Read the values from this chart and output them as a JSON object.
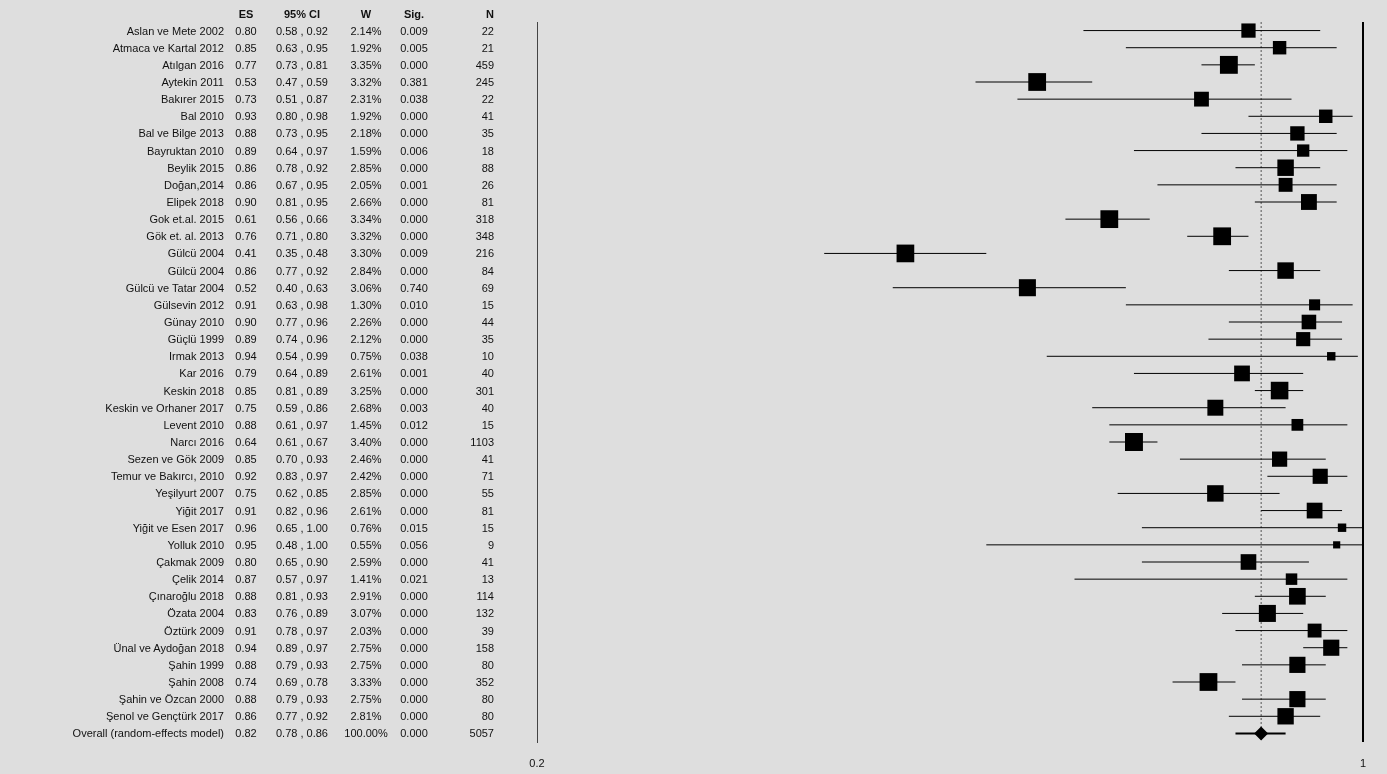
{
  "chart_data": [
    {
      "type": "heatmap",
      "categories": [
        "ES",
        "95% CI",
        "W",
        "Sig.",
        "N"
      ],
      "y_categories": [
        "Aslan ve Mete 2002",
        "Atmaca ve Kartal 2012",
        "Atılgan 2016",
        "Aytekin 2011",
        "Bakırer 2015",
        "Bal 2010",
        "Bal ve Bilge 2013",
        "Bayruktan 2010",
        "Beylik 2015",
        "Doğan,2014",
        "Elipek 2018",
        "Gok et.al. 2015",
        "Gök et. al. 2013",
        "Gülcü 2004",
        "Gülcü 2004",
        "Gülcü ve Tatar 2004",
        "Gülsevin 2012",
        "Günay 2010",
        "Güçlü 1999",
        "Irmak 2013",
        "Kar 2016",
        "Keskin 2018",
        "Keskin ve Orhaner 2017",
        "Levent 2010",
        "Narcı 2016",
        "Sezen ve Gök 2009",
        "Temur ve Bakırcı, 2010",
        "Yeşilyurt 2007",
        "Yiğit 2017",
        "Yiğit ve Esen 2017",
        "Yolluk 2010",
        "Çakmak 2009",
        "Çelik 2014",
        "Çınaroğlu 2018",
        "Özata 2004",
        "Öztürk 2009",
        "Ünal ve Aydoğan 2018",
        "Şahin 1999",
        "Şahin 2008",
        "Şahin ve Özcan 2000",
        "Şenol ve Gençtürk 2017",
        "Overall (random-effects model)"
      ],
      "cells": [
        [
          null,
          null,
          null,
          null,
          null
        ],
        [
          null,
          null,
          null,
          null,
          null
        ],
        [
          null,
          null,
          null,
          null,
          null
        ],
        [
          null,
          null,
          null,
          null,
          null
        ],
        [
          null,
          null,
          null,
          null,
          null
        ],
        [
          null,
          null,
          null,
          null,
          null
        ],
        [
          null,
          null,
          null,
          null,
          null
        ],
        [
          null,
          null,
          null,
          null,
          null
        ],
        [
          null,
          null,
          null,
          null,
          null
        ],
        [
          null,
          null,
          null,
          null,
          null
        ],
        [
          null,
          null,
          null,
          null,
          null
        ],
        [
          null,
          null,
          null,
          null,
          null
        ],
        [
          null,
          null,
          null,
          null,
          null
        ],
        [
          null,
          null,
          null,
          null,
          null
        ],
        [
          null,
          null,
          null,
          null,
          null
        ],
        [
          null,
          null,
          null,
          null,
          null
        ],
        [
          null,
          null,
          null,
          null,
          null
        ],
        [
          null,
          null,
          null,
          null,
          null
        ],
        [
          null,
          null,
          null,
          null,
          null
        ],
        [
          null,
          null,
          null,
          null,
          null
        ],
        [
          null,
          null,
          null,
          null,
          null
        ],
        [
          null,
          null,
          null,
          null,
          null
        ],
        [
          null,
          null,
          null,
          null,
          null
        ],
        [
          null,
          null,
          null,
          null,
          null
        ],
        [
          null,
          null,
          null,
          null,
          null
        ],
        [
          null,
          null,
          null,
          null,
          null
        ],
        [
          null,
          null,
          null,
          null,
          null
        ],
        [
          null,
          null,
          null,
          null,
          null
        ],
        [
          null,
          null,
          null,
          null,
          null
        ],
        [
          null,
          null,
          null,
          null,
          null
        ],
        [
          null,
          null,
          null,
          null,
          null
        ],
        [
          null,
          null,
          null,
          null,
          null
        ],
        [
          null,
          null,
          null,
          null,
          null
        ],
        [
          null,
          null,
          null,
          null,
          null
        ],
        [
          null,
          null,
          null,
          null,
          null
        ],
        [
          null,
          null,
          null,
          null,
          null
        ],
        [
          null,
          null,
          null,
          null,
          null
        ],
        [
          null,
          null,
          null,
          null,
          null
        ],
        [
          null,
          null,
          null,
          null,
          null
        ],
        [
          null,
          null,
          null,
          null,
          null
        ],
        [
          null,
          null,
          null,
          null,
          null
        ],
        [
          null,
          null,
          null,
          null,
          null
        ]
      ],
      "cell_labels": [
        [
          "0.80",
          "0.58 , 0.92",
          "2.14%",
          "0.009",
          "22"
        ],
        [
          "0.85",
          "0.63 , 0.95",
          "1.92%",
          "0.005",
          "21"
        ],
        [
          "0.77",
          "0.73 , 0.81",
          "3.35%",
          "0.000",
          "459"
        ],
        [
          "0.53",
          "0.47 , 0.59",
          "3.32%",
          "0.381",
          "245"
        ],
        [
          "0.73",
          "0.51 , 0.87",
          "2.31%",
          "0.038",
          "22"
        ],
        [
          "0.93",
          "0.80 , 0.98",
          "1.92%",
          "0.000",
          "41"
        ],
        [
          "0.88",
          "0.73 , 0.95",
          "2.18%",
          "0.000",
          "35"
        ],
        [
          "0.89",
          "0.64 , 0.97",
          "1.59%",
          "0.006",
          "18"
        ],
        [
          "0.86",
          "0.78 , 0.92",
          "2.85%",
          "0.000",
          "88"
        ],
        [
          "0.86",
          "0.67 , 0.95",
          "2.05%",
          "0.001",
          "26"
        ],
        [
          "0.90",
          "0.81 , 0.95",
          "2.66%",
          "0.000",
          "81"
        ],
        [
          "0.61",
          "0.56 , 0.66",
          "3.34%",
          "0.000",
          "318"
        ],
        [
          "0.76",
          "0.71 , 0.80",
          "3.32%",
          "0.000",
          "348"
        ],
        [
          "0.41",
          "0.35 , 0.48",
          "3.30%",
          "0.009",
          "216"
        ],
        [
          "0.86",
          "0.77 , 0.92",
          "2.84%",
          "0.000",
          "84"
        ],
        [
          "0.52",
          "0.40 , 0.63",
          "3.06%",
          "0.740",
          "69"
        ],
        [
          "0.91",
          "0.63 , 0.98",
          "1.30%",
          "0.010",
          "15"
        ],
        [
          "0.90",
          "0.77 , 0.96",
          "2.26%",
          "0.000",
          "44"
        ],
        [
          "0.89",
          "0.74 , 0.96",
          "2.12%",
          "0.000",
          "35"
        ],
        [
          "0.94",
          "0.54 , 0.99",
          "0.75%",
          "0.038",
          "10"
        ],
        [
          "0.79",
          "0.64 , 0.89",
          "2.61%",
          "0.001",
          "40"
        ],
        [
          "0.85",
          "0.81 , 0.89",
          "3.25%",
          "0.000",
          "301"
        ],
        [
          "0.75",
          "0.59 , 0.86",
          "2.68%",
          "0.003",
          "40"
        ],
        [
          "0.88",
          "0.61 , 0.97",
          "1.45%",
          "0.012",
          "15"
        ],
        [
          "0.64",
          "0.61 , 0.67",
          "3.40%",
          "0.000",
          "1103"
        ],
        [
          "0.85",
          "0.70 , 0.93",
          "2.46%",
          "0.000",
          "41"
        ],
        [
          "0.92",
          "0.83 , 0.97",
          "2.42%",
          "0.000",
          "71"
        ],
        [
          "0.75",
          "0.62 , 0.85",
          "2.85%",
          "0.000",
          "55"
        ],
        [
          "0.91",
          "0.82 , 0.96",
          "2.61%",
          "0.000",
          "81"
        ],
        [
          "0.96",
          "0.65 , 1.00",
          "0.76%",
          "0.015",
          "15"
        ],
        [
          "0.95",
          "0.48 , 1.00",
          "0.55%",
          "0.056",
          "9"
        ],
        [
          "0.80",
          "0.65 , 0.90",
          "2.59%",
          "0.000",
          "41"
        ],
        [
          "0.87",
          "0.57 , 0.97",
          "1.41%",
          "0.021",
          "13"
        ],
        [
          "0.88",
          "0.81 , 0.93",
          "2.91%",
          "0.000",
          "114"
        ],
        [
          "0.83",
          "0.76 , 0.89",
          "3.07%",
          "0.000",
          "132"
        ],
        [
          "0.91",
          "0.78 , 0.97",
          "2.03%",
          "0.000",
          "39"
        ],
        [
          "0.94",
          "0.89 , 0.97",
          "2.75%",
          "0.000",
          "158"
        ],
        [
          "0.88",
          "0.79 , 0.93",
          "2.75%",
          "0.000",
          "80"
        ],
        [
          "0.74",
          "0.69 , 0.78",
          "3.33%",
          "0.000",
          "352"
        ],
        [
          "0.88",
          "0.79 , 0.93",
          "2.75%",
          "0.000",
          "80"
        ],
        [
          "0.86",
          "0.77 , 0.92",
          "2.81%",
          "0.000",
          "80"
        ],
        [
          "0.82",
          "0.78 , 0.86",
          "100.00%",
          "0.000",
          "5057"
        ]
      ]
    },
    {
      "type": "scatter",
      "orientation": "horizontal",
      "log": "x",
      "xlim": [
        0.2,
        1
      ],
      "xticks": [
        0.2,
        1
      ],
      "tick_labels": "x",
      "legend": false,
      "categories": [
        null,
        null,
        null,
        null,
        null,
        null,
        null,
        null,
        null,
        null,
        null,
        null,
        null,
        null,
        null,
        null,
        null,
        null,
        null,
        null,
        null,
        null,
        null,
        null,
        null,
        null,
        null,
        null,
        null,
        null,
        null,
        null,
        null,
        null,
        null,
        null,
        null,
        null,
        null,
        null,
        null,
        null
      ],
      "series": [
        {
          "type": "bubble",
          "marker": "square",
          "color": "#000000",
          "values": [
            0.8,
            0.85,
            0.77,
            0.53,
            0.73,
            0.93,
            0.88,
            0.89,
            0.86,
            0.86,
            0.9,
            0.61,
            0.76,
            0.41,
            0.86,
            0.52,
            0.91,
            0.9,
            0.89,
            0.94,
            0.79,
            0.85,
            0.75,
            0.88,
            0.64,
            0.85,
            0.92,
            0.75,
            0.91,
            0.96,
            0.95,
            0.8,
            0.87,
            0.88,
            0.83,
            0.91,
            0.94,
            0.88,
            0.74,
            0.88,
            0.86,
            null
          ],
          "errors": [
            [
              0.58,
              0.92
            ],
            [
              0.63,
              0.95
            ],
            [
              0.73,
              0.81
            ],
            [
              0.47,
              0.59
            ],
            [
              0.51,
              0.87
            ],
            [
              0.8,
              0.98
            ],
            [
              0.73,
              0.95
            ],
            [
              0.64,
              0.97
            ],
            [
              0.78,
              0.92
            ],
            [
              0.67,
              0.95
            ],
            [
              0.81,
              0.95
            ],
            [
              0.56,
              0.66
            ],
            [
              0.71,
              0.8
            ],
            [
              0.35,
              0.48
            ],
            [
              0.77,
              0.92
            ],
            [
              0.4,
              0.63
            ],
            [
              0.63,
              0.98
            ],
            [
              0.77,
              0.96
            ],
            [
              0.74,
              0.96
            ],
            [
              0.54,
              0.99
            ],
            [
              0.64,
              0.89
            ],
            [
              0.81,
              0.89
            ],
            [
              0.59,
              0.86
            ],
            [
              0.61,
              0.97
            ],
            [
              0.61,
              0.67
            ],
            [
              0.7,
              0.93
            ],
            [
              0.83,
              0.97
            ],
            [
              0.62,
              0.85
            ],
            [
              0.82,
              0.96
            ],
            [
              0.65,
              1.0
            ],
            [
              0.48,
              1.0
            ],
            [
              0.65,
              0.9
            ],
            [
              0.57,
              0.97
            ],
            [
              0.81,
              0.93
            ],
            [
              0.76,
              0.89
            ],
            [
              0.78,
              0.97
            ],
            [
              0.89,
              0.97
            ],
            [
              0.79,
              0.93
            ],
            [
              0.69,
              0.78
            ],
            [
              0.79,
              0.93
            ],
            [
              0.77,
              0.92
            ],
            null
          ],
          "sizes": [
            0.63,
            0.56,
            0.99,
            0.98,
            0.68,
            0.56,
            0.64,
            0.47,
            0.84,
            0.6,
            0.78,
            0.98,
            0.98,
            0.97,
            0.84,
            0.9,
            0.38,
            0.66,
            0.62,
            0.22,
            0.77,
            0.96,
            0.79,
            0.43,
            1,
            0.72,
            0.71,
            0.84,
            0.77,
            0.22,
            0.16,
            0.76,
            0.41,
            0.86,
            0.9,
            0.6,
            0.81,
            0.81,
            0.98,
            0.81,
            0.83,
            null
          ]
        },
        {
          "type": "scatter",
          "marker": "diamond",
          "color": "#000000",
          "values": [
            null,
            null,
            null,
            null,
            null,
            null,
            null,
            null,
            null,
            null,
            null,
            null,
            null,
            null,
            null,
            null,
            null,
            null,
            null,
            null,
            null,
            null,
            null,
            null,
            null,
            null,
            null,
            null,
            null,
            null,
            null,
            null,
            null,
            null,
            null,
            null,
            null,
            null,
            null,
            null,
            null,
            0.82
          ],
          "errors": [
            null,
            null,
            null,
            null,
            null,
            null,
            null,
            null,
            null,
            null,
            null,
            null,
            null,
            null,
            null,
            null,
            null,
            null,
            null,
            null,
            null,
            null,
            null,
            null,
            null,
            null,
            null,
            null,
            null,
            null,
            null,
            null,
            null,
            null,
            null,
            null,
            null,
            null,
            null,
            null,
            null,
            [
              0.78,
              0.86
            ]
          ]
        }
      ],
      "ref_lines": [
        {
          "axis": "x",
          "value": 1,
          "color": "#000000",
          "line_style": "solid"
        },
        {
          "axis": "x",
          "value": 0.82,
          "color": "#555555",
          "line_style": "dotted"
        }
      ]
    }
  ]
}
